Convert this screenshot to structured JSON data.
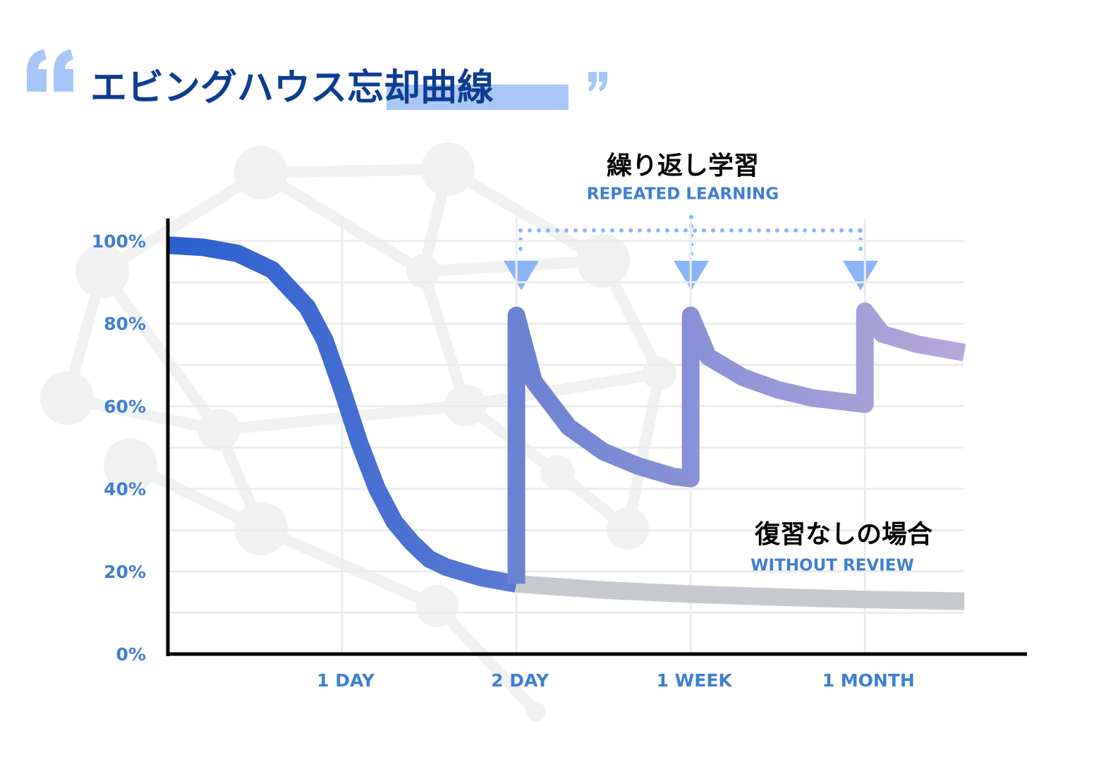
{
  "chart_data": {
    "type": "line",
    "title": "エビングハウス忘却曲線",
    "xlim": [
      0,
      4.93
    ],
    "xticks": [
      {
        "value": 1,
        "label": "1 DAY"
      },
      {
        "value": 2,
        "label": "2 DAY"
      },
      {
        "value": 3,
        "label": "1 WEEK"
      },
      {
        "value": 4,
        "label": "1 MONTH"
      }
    ],
    "ylim": [
      0,
      100
    ],
    "yticks": [
      {
        "value": 0,
        "label": "0%"
      },
      {
        "value": 20,
        "label": "20%"
      },
      {
        "value": 40,
        "label": "40%"
      },
      {
        "value": 60,
        "label": "60%"
      },
      {
        "value": 80,
        "label": "80%"
      },
      {
        "value": 100,
        "label": "100%"
      }
    ],
    "minor_yticks": [
      10,
      30,
      50,
      70,
      90
    ],
    "grid": true,
    "series": [
      {
        "color": [
          "#2c60cf",
          "#5a7bd3"
        ],
        "x": [
          0,
          0.2,
          0.4,
          0.6,
          0.8,
          0.9,
          1.0,
          1.1,
          1.2,
          1.3,
          1.4,
          1.5,
          1.6,
          1.8,
          2.0
        ],
        "values": [
          99,
          98.5,
          97,
          93,
          84,
          76,
          64,
          51,
          40,
          32,
          27,
          23,
          21,
          18.5,
          17
        ]
      },
      {
        "name": "復習なしの場合",
        "subtitle": "WITHOUT REVIEW",
        "color": "#c6c9ce",
        "x": [
          2,
          2.5,
          3,
          3.5,
          4,
          4.57
        ],
        "values": [
          17,
          15.5,
          14.5,
          13.8,
          13.2,
          12.8
        ]
      },
      {
        "name": "繰り返し学習",
        "subtitle": "REPEATED LEARNING",
        "color": [
          "#6a82d2",
          "#b6a8da"
        ],
        "x": [
          2,
          2,
          2.1,
          2.3,
          2.5,
          2.7,
          2.9,
          3,
          3,
          3.1,
          3.3,
          3.5,
          3.7,
          4,
          4,
          4.1,
          4.3,
          4.57
        ],
        "values": [
          17,
          82,
          66,
          55,
          49,
          45.5,
          43,
          42.5,
          82,
          72,
          67,
          64,
          62,
          60.5,
          83,
          77.5,
          75,
          73
        ]
      }
    ]
  }
}
